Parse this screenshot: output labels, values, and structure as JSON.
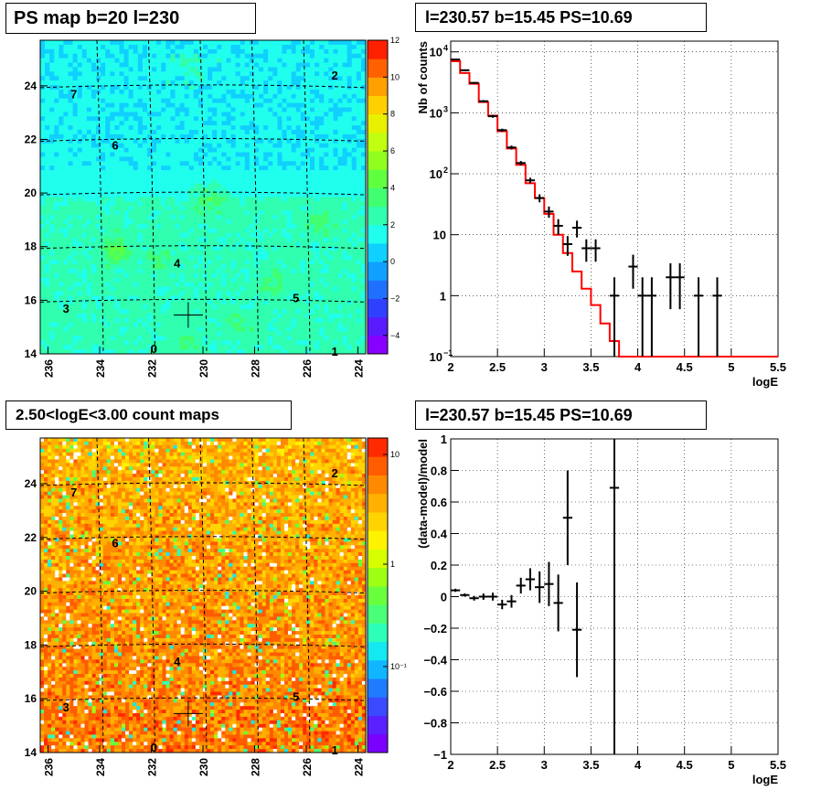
{
  "chart_data": [
    {
      "type": "heatmap",
      "title": "PS map b=20 l=230",
      "x_ticks": [
        "236",
        "234",
        "232",
        "230",
        "228",
        "226",
        "224"
      ],
      "y_ticks": [
        "14",
        "16",
        "18",
        "20",
        "22",
        "24"
      ],
      "xlim": [
        236.3,
        223.7
      ],
      "ylim": [
        14,
        25.7
      ],
      "colorbar": {
        "ticks": [
          "12",
          "10",
          "8",
          "6",
          "4",
          "2",
          "0",
          "−2",
          "−4"
        ],
        "min": -5,
        "max": 12
      },
      "sources": [
        {
          "label": "0",
          "l": 231.9,
          "b": 14.2
        },
        {
          "label": "1",
          "l": 224.9,
          "b": 14.1
        },
        {
          "label": "2",
          "l": 224.9,
          "b": 24.4
        },
        {
          "label": "3",
          "l": 235.3,
          "b": 15.7
        },
        {
          "label": "4",
          "l": 231.0,
          "b": 17.4
        },
        {
          "label": "5",
          "l": 226.4,
          "b": 16.1
        },
        {
          "label": "6",
          "l": 233.4,
          "b": 21.8
        },
        {
          "label": "7",
          "l": 235.0,
          "b": 23.7
        }
      ],
      "marker": {
        "l": 230.57,
        "b": 15.45
      }
    },
    {
      "type": "line",
      "title": "l=230.57 b=15.45 PS=10.69",
      "xlabel": "logE",
      "ylabel": "Nb of counts",
      "xlim": [
        2,
        5.5
      ],
      "ylim": [
        0.1,
        15000
      ],
      "yscale": "log",
      "x_ticks": [
        "2",
        "2.5",
        "3",
        "3.5",
        "4",
        "4.5",
        "5",
        "5.5"
      ],
      "y_ticks": [
        {
          "v": 10000,
          "label": "10",
          "sup": "4"
        },
        {
          "v": 1000,
          "label": "10",
          "sup": "3"
        },
        {
          "v": 100,
          "label": "10",
          "sup": "2"
        },
        {
          "v": 10,
          "label": "10",
          "sup": ""
        },
        {
          "v": 1,
          "label": "1",
          "sup": ""
        },
        {
          "v": 0.1,
          "label": "10",
          "sup": "−1"
        }
      ],
      "model": {
        "bin_edges": [
          2.0,
          2.1,
          2.2,
          2.3,
          2.4,
          2.5,
          2.6,
          2.7,
          2.8,
          2.9,
          3.0,
          3.1,
          3.2,
          3.3,
          3.4,
          3.5,
          3.6,
          3.7,
          3.8,
          3.9,
          4.0,
          4.1,
          4.2,
          4.3,
          4.4,
          4.5,
          4.6,
          4.7,
          4.8,
          4.9,
          5.0,
          5.1,
          5.2,
          5.3,
          5.4,
          5.5
        ],
        "values": [
          7000,
          4500,
          3000,
          1500,
          900,
          500,
          260,
          140,
          70,
          40,
          22,
          10,
          5,
          2.5,
          1.3,
          0.7,
          0.35,
          0.18,
          0.1,
          0.1,
          0.1,
          0.1,
          0.1,
          0.1,
          0.1,
          0.1,
          0.1,
          0.1,
          0.1,
          0.1,
          0.1,
          0.1,
          0.1,
          0.1,
          0.1
        ],
        "color": "#ff0000"
      },
      "data": [
        {
          "x": 2.05,
          "y": 7500,
          "lo": 7300,
          "hi": 7700
        },
        {
          "x": 2.15,
          "y": 5000,
          "lo": 4850,
          "hi": 5150
        },
        {
          "x": 2.25,
          "y": 3100,
          "lo": 3000,
          "hi": 3200
        },
        {
          "x": 2.35,
          "y": 1550,
          "lo": 1480,
          "hi": 1620
        },
        {
          "x": 2.45,
          "y": 880,
          "lo": 830,
          "hi": 930
        },
        {
          "x": 2.55,
          "y": 520,
          "lo": 490,
          "hi": 550
        },
        {
          "x": 2.65,
          "y": 270,
          "lo": 250,
          "hi": 290
        },
        {
          "x": 2.75,
          "y": 150,
          "lo": 138,
          "hi": 162
        },
        {
          "x": 2.85,
          "y": 78,
          "lo": 70,
          "hi": 86
        },
        {
          "x": 2.95,
          "y": 40,
          "lo": 34,
          "hi": 46
        },
        {
          "x": 3.05,
          "y": 24,
          "lo": 19,
          "hi": 29
        },
        {
          "x": 3.15,
          "y": 14,
          "lo": 10,
          "hi": 18
        },
        {
          "x": 3.25,
          "y": 7,
          "lo": 4.5,
          "hi": 9.5
        },
        {
          "x": 3.35,
          "y": 13,
          "lo": 9,
          "hi": 17
        },
        {
          "x": 3.45,
          "y": 6,
          "lo": 3.6,
          "hi": 8.4
        },
        {
          "x": 3.55,
          "y": 6,
          "lo": 3.6,
          "hi": 8.4
        },
        {
          "x": 3.75,
          "y": 1,
          "lo": 0.1,
          "hi": 2
        },
        {
          "x": 3.95,
          "y": 3,
          "lo": 1.3,
          "hi": 4.7
        },
        {
          "x": 4.05,
          "y": 1,
          "lo": 0.1,
          "hi": 2
        },
        {
          "x": 4.15,
          "y": 1,
          "lo": 0.1,
          "hi": 2
        },
        {
          "x": 4.35,
          "y": 2,
          "lo": 0.6,
          "hi": 3.4
        },
        {
          "x": 4.45,
          "y": 2,
          "lo": 0.6,
          "hi": 3.4
        },
        {
          "x": 4.65,
          "y": 1,
          "lo": 0.1,
          "hi": 2
        },
        {
          "x": 4.85,
          "y": 1,
          "lo": 0.1,
          "hi": 2
        }
      ]
    },
    {
      "type": "heatmap",
      "title": "2.50<logE<3.00 count maps",
      "x_ticks": [
        "236",
        "234",
        "232",
        "230",
        "228",
        "226",
        "224"
      ],
      "y_ticks": [
        "14",
        "16",
        "18",
        "20",
        "22",
        "24"
      ],
      "xlim": [
        236.3,
        223.7
      ],
      "ylim": [
        14,
        25.7
      ],
      "colorbar": {
        "ticks": [
          "10",
          "1",
          "10⁻¹"
        ],
        "scale": "log"
      },
      "sources": [
        {
          "label": "0",
          "l": 231.9,
          "b": 14.2
        },
        {
          "label": "1",
          "l": 224.9,
          "b": 14.1
        },
        {
          "label": "2",
          "l": 224.9,
          "b": 24.4
        },
        {
          "label": "3",
          "l": 235.3,
          "b": 15.7
        },
        {
          "label": "4",
          "l": 231.0,
          "b": 17.4
        },
        {
          "label": "5",
          "l": 226.4,
          "b": 16.1
        },
        {
          "label": "6",
          "l": 233.4,
          "b": 21.8
        },
        {
          "label": "7",
          "l": 235.0,
          "b": 23.7
        }
      ],
      "marker": {
        "l": 230.57,
        "b": 15.45
      }
    },
    {
      "type": "scatter",
      "title": "l=230.57 b=15.45 PS=10.69",
      "xlabel": "logE",
      "ylabel": "(data-model)/model",
      "xlim": [
        2,
        5.5
      ],
      "ylim": [
        -1,
        1
      ],
      "x_ticks": [
        "2",
        "2.5",
        "3",
        "3.5",
        "4",
        "4.5",
        "5",
        "5.5"
      ],
      "y_ticks": [
        "1",
        "0.8",
        "0.6",
        "0.4",
        "0.2",
        "0",
        "−0.2",
        "−0.4",
        "−0.6",
        "−0.8",
        "−1"
      ],
      "data": [
        {
          "x": 2.05,
          "y": 0.04,
          "lo": 0.03,
          "hi": 0.05
        },
        {
          "x": 2.15,
          "y": 0.01,
          "lo": 0.0,
          "hi": 0.02
        },
        {
          "x": 2.25,
          "y": -0.01,
          "lo": -0.025,
          "hi": 0.005
        },
        {
          "x": 2.35,
          "y": 0.0,
          "lo": -0.02,
          "hi": 0.02
        },
        {
          "x": 2.45,
          "y": 0.0,
          "lo": -0.025,
          "hi": 0.025
        },
        {
          "x": 2.55,
          "y": -0.05,
          "lo": -0.08,
          "hi": -0.02
        },
        {
          "x": 2.65,
          "y": -0.03,
          "lo": -0.07,
          "hi": 0.01
        },
        {
          "x": 2.75,
          "y": 0.07,
          "lo": 0.02,
          "hi": 0.12
        },
        {
          "x": 2.85,
          "y": 0.11,
          "lo": 0.04,
          "hi": 0.18
        },
        {
          "x": 2.95,
          "y": 0.06,
          "lo": -0.04,
          "hi": 0.16
        },
        {
          "x": 3.05,
          "y": 0.08,
          "lo": -0.06,
          "hi": 0.22
        },
        {
          "x": 3.15,
          "y": -0.04,
          "lo": -0.22,
          "hi": 0.14
        },
        {
          "x": 3.25,
          "y": 0.5,
          "lo": 0.2,
          "hi": 0.8
        },
        {
          "x": 3.35,
          "y": -0.21,
          "lo": -0.51,
          "hi": 0.09
        },
        {
          "x": 3.75,
          "y": 0.69,
          "lo": -1,
          "hi": 1
        }
      ]
    }
  ]
}
